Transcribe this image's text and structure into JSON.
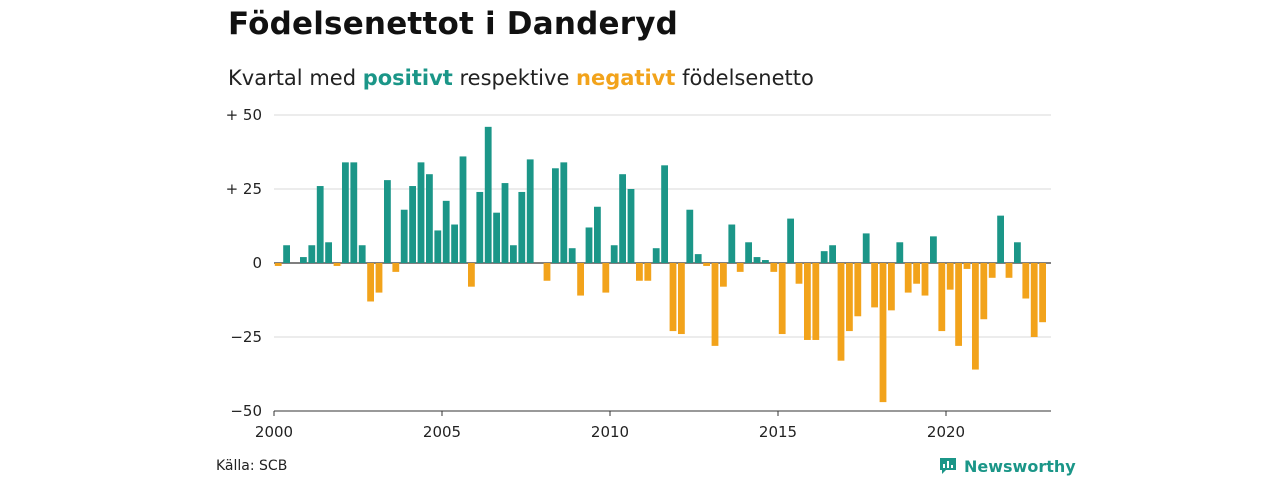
{
  "title": "Födelsenettot i Danderyd",
  "subtitle": {
    "part1": "Kvartal med ",
    "positive": "positivt",
    "part2": " respektive ",
    "negative": "negativt",
    "part3": " födelsenetto"
  },
  "source": "Källa: SCB",
  "brand": {
    "name": "Newsworthy",
    "icon": "newsworthy-logo-icon"
  },
  "colors": {
    "positive": "#1b9688",
    "negative": "#f2a31b",
    "grid": "#d9d9d9",
    "axis": "#333333"
  },
  "chart_data": {
    "type": "bar",
    "x_start": "2000 Q1",
    "x_ticks": [
      "2000",
      "2005",
      "2010",
      "2015",
      "2020"
    ],
    "y_ticks": [
      "+ 50",
      "+ 25",
      "0",
      "−25",
      "−50"
    ],
    "y_tick_values": [
      50,
      25,
      0,
      -25,
      -50
    ],
    "ylim": [
      -50,
      50
    ],
    "grid": true,
    "values": [
      -1,
      6,
      0,
      2,
      6,
      26,
      7,
      -1,
      34,
      34,
      6,
      -13,
      -10,
      28,
      -3,
      18,
      26,
      34,
      30,
      11,
      21,
      13,
      36,
      -8,
      24,
      46,
      17,
      27,
      6,
      24,
      35,
      0,
      -6,
      32,
      34,
      5,
      -11,
      12,
      19,
      -10,
      6,
      30,
      25,
      -6,
      -6,
      5,
      33,
      -23,
      -24,
      18,
      3,
      -1,
      -28,
      -8,
      13,
      -3,
      7,
      2,
      1,
      -3,
      -24,
      15,
      -7,
      -26,
      -26,
      4,
      6,
      -33,
      -23,
      -18,
      10,
      -15,
      -47,
      -16,
      7,
      -10,
      -7,
      -11,
      9,
      -23,
      -9,
      -28,
      -2,
      -36,
      -19,
      -5,
      16,
      -5,
      7,
      -12,
      -25,
      -20
    ]
  }
}
